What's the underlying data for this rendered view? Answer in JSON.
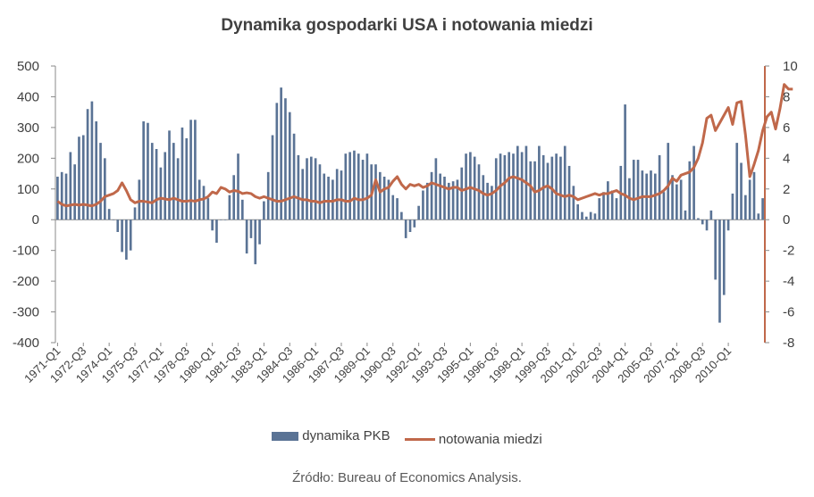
{
  "chart_data": {
    "type": "bar",
    "title": "Dynamika gospodarki USA i notowania miedzi",
    "xlabel": "",
    "ylabel": "",
    "ylim": [
      -400,
      500
    ],
    "y2lim": [
      -8,
      10
    ],
    "yticks": [
      "500",
      "400",
      "300",
      "200",
      "100",
      "0",
      "-100",
      "-200",
      "-300",
      "-400"
    ],
    "y2ticks": [
      "10",
      "8",
      "6",
      "4",
      "2",
      "0",
      "-2",
      "-4",
      "-6",
      "-8"
    ],
    "x_labels": [
      "1971-Q1",
      "1972-Q3",
      "1974-Q1",
      "1975-Q3",
      "1977-Q1",
      "1978-Q3",
      "1980-Q1",
      "1981-Q3",
      "1983-Q1",
      "1984-Q3",
      "1986-Q1",
      "1987-Q3",
      "1989-Q1",
      "1990-Q3",
      "1992-Q1",
      "1993-Q3",
      "1995-Q1",
      "1996-Q3",
      "1998-Q1",
      "1999-Q3",
      "2001-Q1",
      "2002-Q3",
      "2004-Q1",
      "2005-Q3",
      "2007-Q1",
      "2008-Q3",
      "2010-Q1"
    ],
    "series": [
      {
        "name": "dynamika PKB",
        "type": "bar",
        "axis": "left",
        "values": [
          140,
          155,
          150,
          220,
          180,
          270,
          275,
          360,
          385,
          320,
          250,
          200,
          35,
          0,
          -40,
          -105,
          -130,
          -100,
          40,
          130,
          320,
          315,
          250,
          230,
          170,
          220,
          290,
          250,
          200,
          300,
          265,
          325,
          325,
          130,
          110,
          70,
          -35,
          -75,
          0,
          0,
          80,
          145,
          215,
          65,
          -110,
          -60,
          -145,
          -80,
          60,
          155,
          275,
          380,
          430,
          395,
          350,
          280,
          210,
          165,
          200,
          205,
          200,
          180,
          150,
          140,
          130,
          165,
          160,
          215,
          220,
          225,
          215,
          195,
          215,
          180,
          180,
          155,
          140,
          130,
          80,
          70,
          25,
          -60,
          -40,
          -25,
          45,
          95,
          120,
          155,
          200,
          150,
          140,
          120,
          125,
          130,
          170,
          215,
          220,
          205,
          180,
          145,
          120,
          110,
          200,
          215,
          210,
          220,
          215,
          240,
          220,
          240,
          190,
          190,
          240,
          210,
          185,
          205,
          215,
          205,
          240,
          175,
          110,
          50,
          25,
          10,
          25,
          20,
          70,
          90,
          125,
          95,
          70,
          175,
          375,
          135,
          195,
          195,
          160,
          150,
          160,
          150,
          210,
          90,
          250,
          145,
          115,
          130,
          30,
          190,
          240,
          5,
          -15,
          -35,
          30,
          -195,
          -335,
          -245,
          -35,
          85,
          250,
          185,
          80,
          130,
          155,
          20,
          70
        ]
      },
      {
        "name": "notowania miedzi",
        "type": "line",
        "axis": "right",
        "values": [
          1.2,
          1.0,
          0.9,
          0.95,
          1.0,
          0.95,
          1.0,
          0.95,
          0.9,
          1.0,
          1.2,
          1.5,
          1.6,
          1.7,
          1.9,
          2.4,
          1.9,
          1.3,
          1.1,
          1.2,
          1.2,
          1.15,
          1.1,
          1.3,
          1.4,
          1.35,
          1.3,
          1.4,
          1.3,
          1.2,
          1.2,
          1.25,
          1.2,
          1.3,
          1.35,
          1.5,
          1.8,
          1.7,
          2.1,
          2.0,
          1.8,
          1.9,
          1.85,
          1.7,
          1.75,
          1.7,
          1.5,
          1.4,
          1.5,
          1.4,
          1.3,
          1.2,
          1.2,
          1.3,
          1.4,
          1.5,
          1.4,
          1.3,
          1.3,
          1.2,
          1.2,
          1.1,
          1.2,
          1.2,
          1.2,
          1.3,
          1.3,
          1.2,
          1.2,
          1.4,
          1.3,
          1.3,
          1.4,
          1.6,
          2.6,
          1.8,
          2.0,
          2.1,
          2.5,
          2.8,
          2.3,
          2.0,
          2.3,
          2.2,
          2.3,
          2.1,
          2.2,
          2.4,
          2.3,
          2.2,
          2.1,
          2.0,
          2.1,
          2.1,
          1.9,
          2.0,
          2.1,
          2.0,
          1.9,
          1.7,
          1.6,
          1.7,
          1.9,
          2.2,
          2.4,
          2.7,
          2.8,
          2.7,
          2.6,
          2.4,
          2.2,
          1.8,
          1.9,
          2.1,
          2.2,
          2.0,
          1.7,
          1.6,
          1.5,
          1.6,
          1.5,
          1.3,
          1.4,
          1.5,
          1.6,
          1.7,
          1.6,
          1.7,
          1.7,
          1.8,
          1.9,
          1.7,
          1.6,
          1.4,
          1.3,
          1.4,
          1.5,
          1.5,
          1.5,
          1.6,
          1.7,
          1.9,
          2.2,
          2.7,
          2.5,
          2.9,
          3.0,
          3.1,
          3.4,
          4.0,
          5.0,
          6.6,
          6.8,
          5.8,
          6.3,
          6.8,
          7.3,
          6.2,
          7.6,
          7.7,
          5.5,
          2.8,
          3.6,
          4.5,
          5.8,
          6.7,
          7.0,
          5.9,
          7.2,
          8.8,
          8.5,
          8.5
        ]
      }
    ],
    "legend": {
      "position": "bottom",
      "labels": [
        "dynamika PKB",
        "notowania miedzi"
      ]
    },
    "colors": {
      "bar": "#5a7395",
      "line": "#c0684a",
      "axis": "#8a8a8a",
      "right_axis": "#c0684a"
    },
    "grid": false
  },
  "source_text": "Źródło: Bureau of Economics Analysis."
}
